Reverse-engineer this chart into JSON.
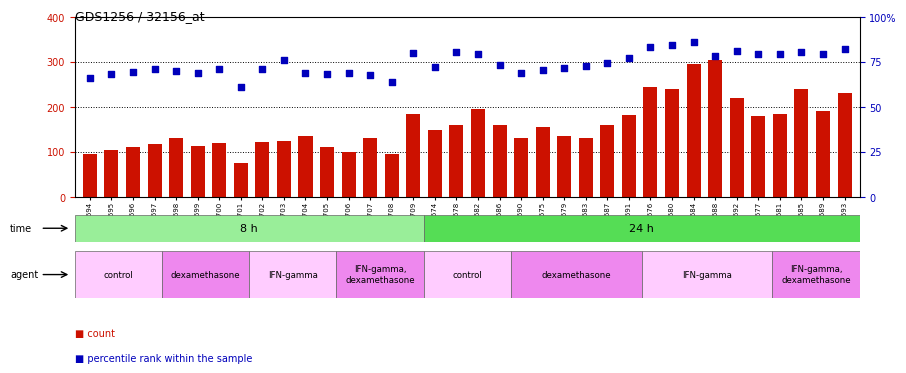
{
  "title": "GDS1256 / 32156_at",
  "samples": [
    "GSM31694",
    "GSM31695",
    "GSM31696",
    "GSM31697",
    "GSM31698",
    "GSM31699",
    "GSM31700",
    "GSM31701",
    "GSM31702",
    "GSM31703",
    "GSM31704",
    "GSM31705",
    "GSM31706",
    "GSM31707",
    "GSM31708",
    "GSM31709",
    "GSM31674",
    "GSM31678",
    "GSM31682",
    "GSM31686",
    "GSM31690",
    "GSM31675",
    "GSM31679",
    "GSM31683",
    "GSM31687",
    "GSM31691",
    "GSM31676",
    "GSM31680",
    "GSM31684",
    "GSM31688",
    "GSM31692",
    "GSM31677",
    "GSM31681",
    "GSM31685",
    "GSM31689",
    "GSM31693"
  ],
  "counts": [
    95,
    105,
    110,
    118,
    130,
    112,
    120,
    75,
    122,
    125,
    135,
    110,
    100,
    130,
    95,
    185,
    148,
    160,
    195,
    160,
    130,
    155,
    135,
    130,
    160,
    182,
    245,
    240,
    295,
    305,
    220,
    180,
    185,
    240,
    190,
    230
  ],
  "percentile_left": [
    265,
    272,
    278,
    284,
    280,
    274,
    285,
    245,
    283,
    305,
    275,
    272,
    274,
    271,
    256,
    320,
    288,
    322,
    318,
    292,
    275,
    282,
    287,
    290,
    298,
    308,
    332,
    337,
    345,
    312,
    325,
    318,
    318,
    322,
    318,
    328
  ],
  "bar_color": "#cc1100",
  "dot_color": "#0000bb",
  "ylim_left": [
    0,
    400
  ],
  "ylim_right": [
    0,
    100
  ],
  "yticks_left": [
    0,
    100,
    200,
    300,
    400
  ],
  "yticks_right": [
    0,
    25,
    50,
    75,
    100
  ],
  "time_groups": [
    {
      "label": "8 h",
      "start": 0,
      "end": 16,
      "color": "#99ee99"
    },
    {
      "label": "24 h",
      "start": 16,
      "end": 36,
      "color": "#55dd55"
    }
  ],
  "agent_groups": [
    {
      "label": "control",
      "start": 0,
      "end": 4,
      "color": "#ffccff"
    },
    {
      "label": "dexamethasone",
      "start": 4,
      "end": 8,
      "color": "#ee88ee"
    },
    {
      "label": "IFN-gamma",
      "start": 8,
      "end": 12,
      "color": "#ffccff"
    },
    {
      "label": "IFN-gamma,\ndexamethasone",
      "start": 12,
      "end": 16,
      "color": "#ee88ee"
    },
    {
      "label": "control",
      "start": 16,
      "end": 20,
      "color": "#ffccff"
    },
    {
      "label": "dexamethasone",
      "start": 20,
      "end": 26,
      "color": "#ee88ee"
    },
    {
      "label": "IFN-gamma",
      "start": 26,
      "end": 32,
      "color": "#ffccff"
    },
    {
      "label": "IFN-gamma,\ndexamethasone",
      "start": 32,
      "end": 36,
      "color": "#ee88ee"
    }
  ]
}
